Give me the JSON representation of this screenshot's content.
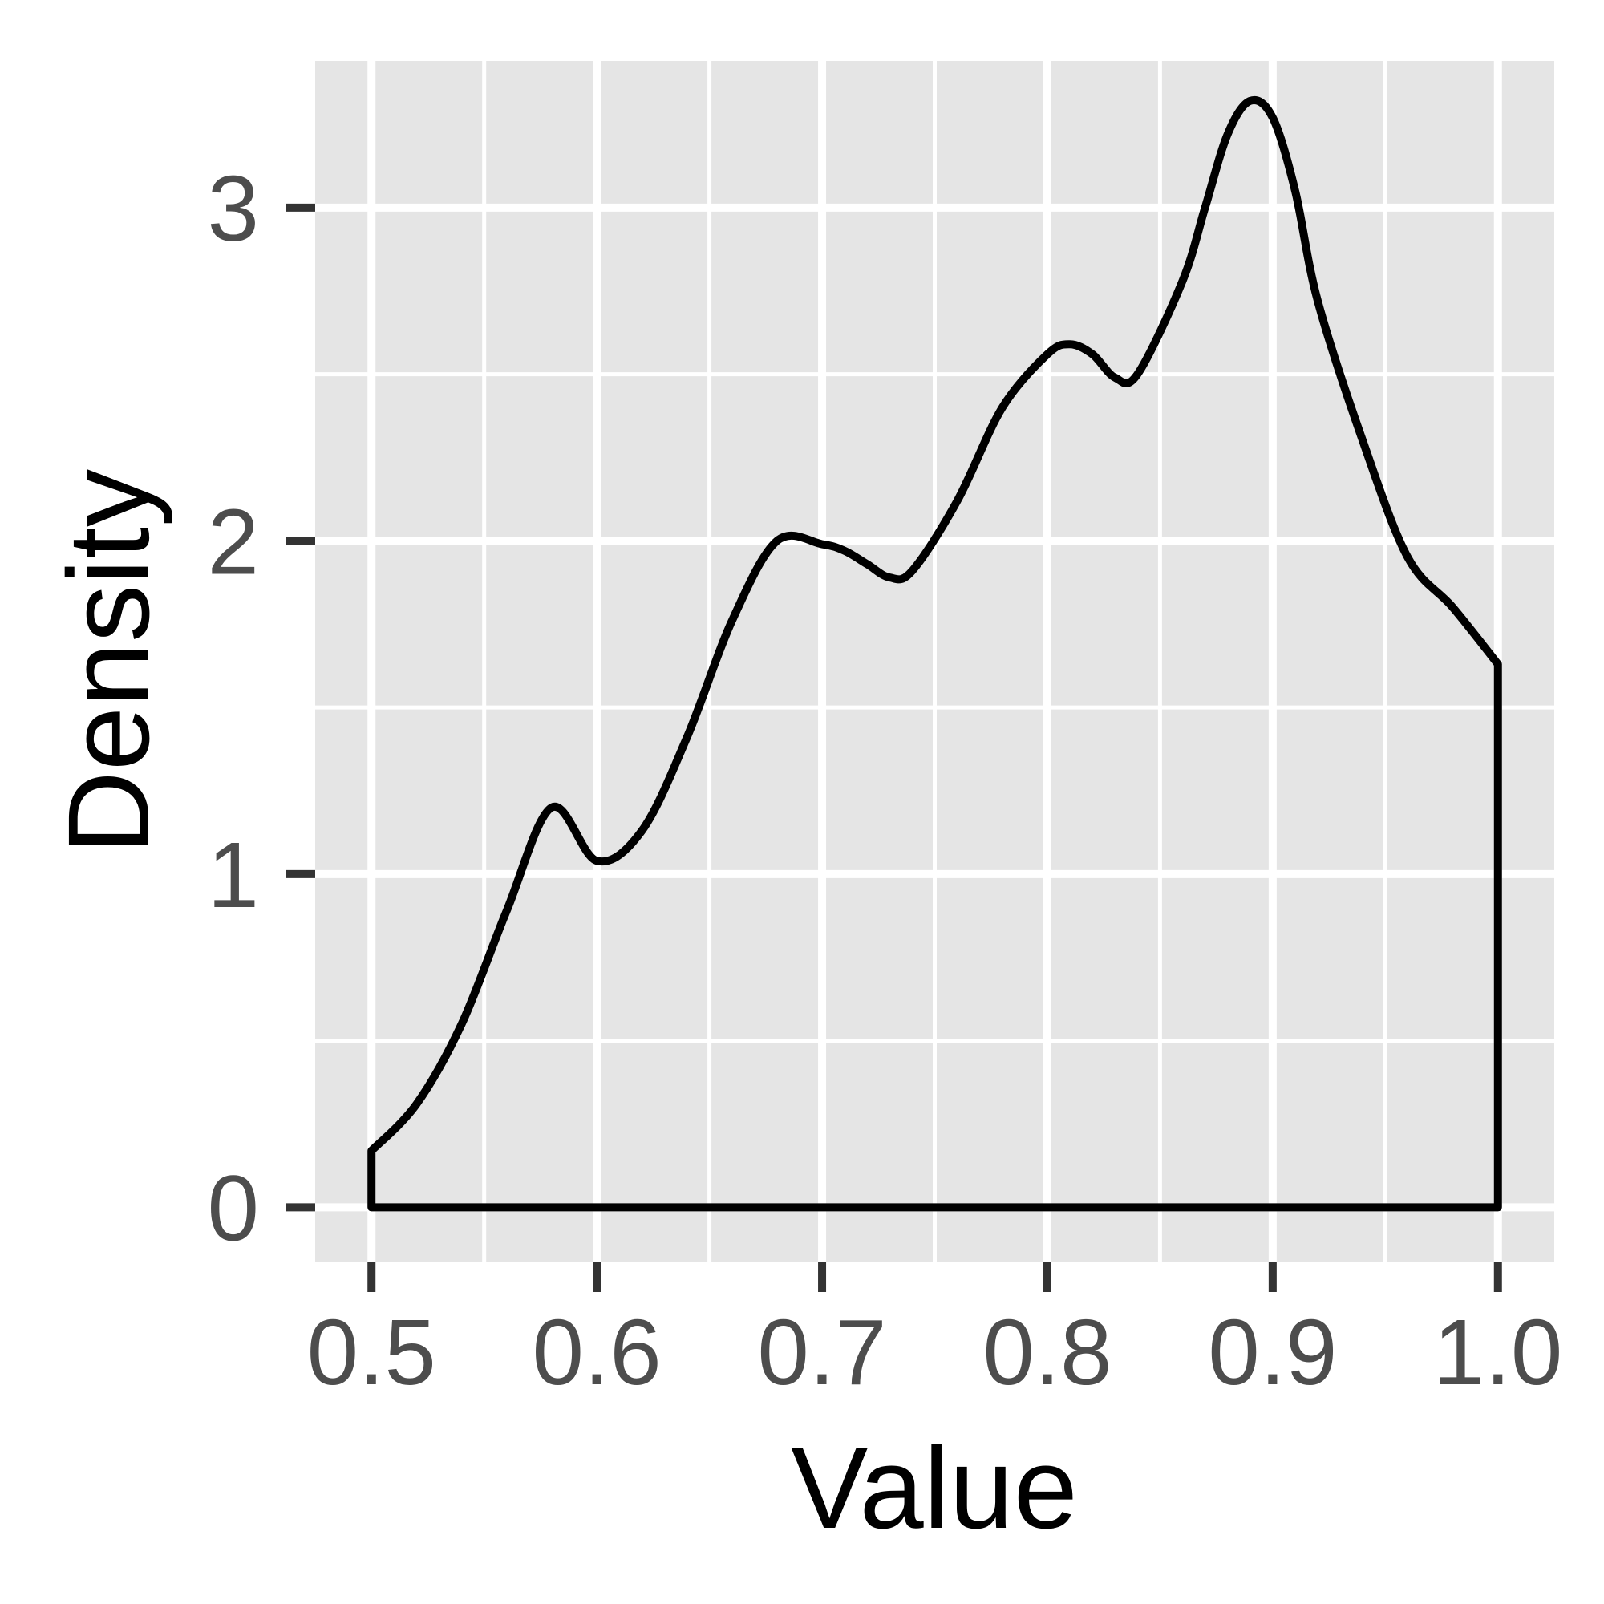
{
  "chart_data": {
    "type": "line",
    "title": "",
    "xlabel": "Value",
    "ylabel": "Density",
    "xlim": [
      0.475,
      1.025
    ],
    "ylim": [
      -0.165,
      3.44
    ],
    "x_ticks": [
      0.5,
      0.6,
      0.7,
      0.8,
      0.9,
      1.0
    ],
    "x_tick_labels": [
      "0.5",
      "0.6",
      "0.7",
      "0.8",
      "0.9",
      "1.0"
    ],
    "y_ticks": [
      0,
      1,
      2,
      3
    ],
    "y_tick_labels": [
      "0",
      "1",
      "2",
      "3"
    ],
    "grid": true,
    "legend": "none",
    "panel_background": "#e5e5e5",
    "line_color": "#000000",
    "series": [
      {
        "x": [
          0.5,
          0.52,
          0.54,
          0.56,
          0.58,
          0.6,
          0.62,
          0.64,
          0.66,
          0.68,
          0.7,
          0.71,
          0.72,
          0.73,
          0.74,
          0.76,
          0.78,
          0.8,
          0.81,
          0.82,
          0.83,
          0.84,
          0.86,
          0.87,
          0.88,
          0.89,
          0.9,
          0.91,
          0.92,
          0.94,
          0.96,
          0.98,
          1.0
        ],
        "y": [
          0.17,
          0.31,
          0.55,
          0.89,
          1.2,
          1.04,
          1.13,
          1.41,
          1.76,
          2.0,
          1.99,
          1.97,
          1.93,
          1.89,
          1.91,
          2.12,
          2.4,
          2.56,
          2.59,
          2.56,
          2.49,
          2.5,
          2.78,
          3.0,
          3.22,
          3.32,
          3.27,
          3.05,
          2.72,
          2.3,
          1.95,
          1.8,
          1.63
        ]
      }
    ]
  }
}
